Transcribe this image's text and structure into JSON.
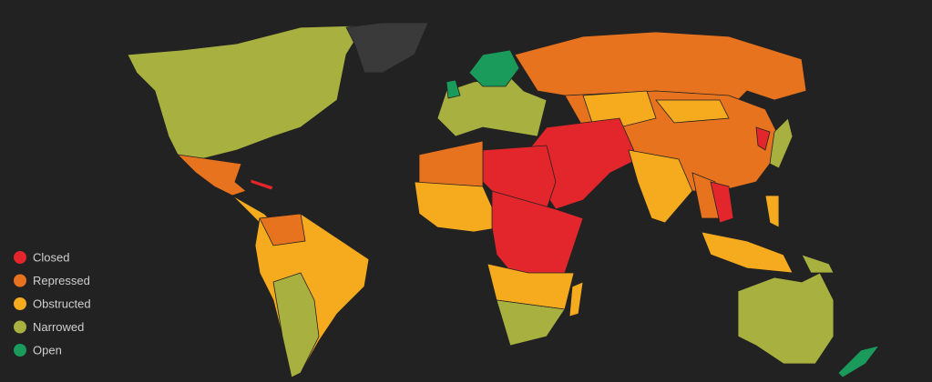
{
  "legend": {
    "items": [
      {
        "label": "Closed",
        "color": "#e3262b"
      },
      {
        "label": "Repressed",
        "color": "#e8731f"
      },
      {
        "label": "Obstructed",
        "color": "#f6ab1f"
      },
      {
        "label": "Narrowed",
        "color": "#a8b040"
      },
      {
        "label": "Open",
        "color": "#1a9b5b"
      }
    ]
  }
}
